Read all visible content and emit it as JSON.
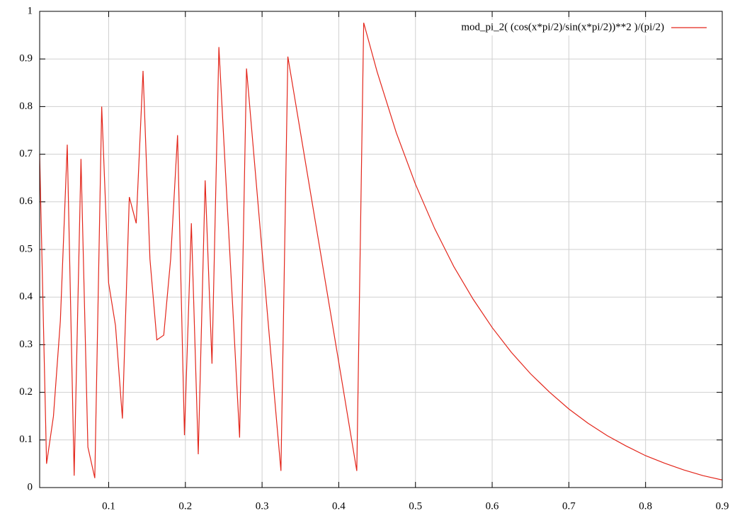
{
  "chart_data": {
    "type": "line",
    "x": [
      0.01,
      0.019,
      0.028,
      0.037,
      0.046,
      0.055,
      0.0639,
      0.0729,
      0.0819,
      0.0909,
      0.0999,
      0.1089,
      0.1179,
      0.1269,
      0.1359,
      0.1448,
      0.1538,
      0.1628,
      0.1718,
      0.1808,
      0.1898,
      0.1988,
      0.2078,
      0.2168,
      0.2258,
      0.2347,
      0.2437,
      0.2527,
      0.2617,
      0.2707,
      0.2797,
      0.2887,
      0.2977,
      0.3067,
      0.3157,
      0.3246,
      0.3336,
      0.3426,
      0.3516,
      0.3606,
      0.3696,
      0.3786,
      0.3876,
      0.3966,
      0.4056,
      0.4145,
      0.4235,
      0.4325,
      0.45,
      0.475,
      0.5,
      0.525,
      0.55,
      0.575,
      0.6,
      0.625,
      0.65,
      0.675,
      0.7,
      0.725,
      0.75,
      0.775,
      0.8,
      0.825,
      0.85,
      0.875,
      0.9
    ],
    "series": [
      {
        "name": "mod_pi_2( (cos(x*pi/2)/sin(x*pi/2))**2  )/(pi/2)",
        "color": "#e3261b",
        "values": [
          0.7,
          0.05,
          0.15,
          0.35,
          0.72,
          0.025,
          0.69,
          0.085,
          0.02,
          0.8,
          0.43,
          0.34,
          0.145,
          0.61,
          0.555,
          0.875,
          0.48,
          0.31,
          0.32,
          0.48,
          0.74,
          0.11,
          0.555,
          0.07,
          0.645,
          0.26,
          0.925,
          0.65,
          0.38,
          0.105,
          0.88,
          0.71,
          0.54,
          0.37,
          0.2,
          0.035,
          0.905,
          0.818,
          0.731,
          0.644,
          0.557,
          0.47,
          0.383,
          0.296,
          0.209,
          0.122,
          0.035,
          0.976,
          0.873,
          0.745,
          0.637,
          0.544,
          0.464,
          0.396,
          0.336,
          0.284,
          0.239,
          0.2,
          0.165,
          0.135,
          0.109,
          0.087,
          0.067,
          0.051,
          0.037,
          0.025,
          0.016
        ]
      }
    ],
    "xlim": [
      0.01,
      0.9
    ],
    "ylim": [
      0,
      1
    ],
    "xticks": [
      0.1,
      0.2,
      0.3,
      0.4,
      0.5,
      0.6,
      0.7,
      0.8,
      0.9
    ],
    "yticks": [
      0,
      0.1,
      0.2,
      0.3,
      0.4,
      0.5,
      0.6,
      0.7,
      0.8,
      0.9,
      1
    ],
    "grid": true,
    "legend": "top-right"
  }
}
